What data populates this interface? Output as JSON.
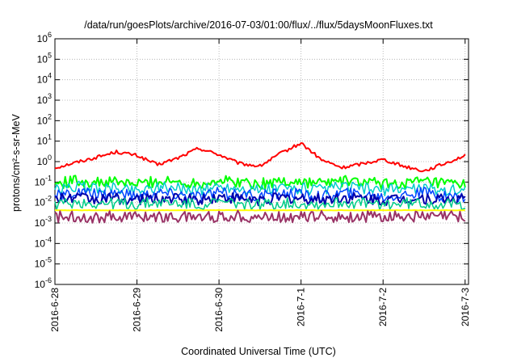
{
  "chart_data": {
    "type": "line",
    "title": "/data/run/goesPlots/archive/2016-07-03/01:00/flux/../flux/5daysMoonFluxes.txt",
    "xlabel": "Coordinated Universal Time (UTC)",
    "ylabel": "protons/cm²-s-sr-MeV",
    "yscale": "log",
    "ylim": [
      1e-06,
      1000000.0
    ],
    "xlim": [
      "2016-06-28",
      "2016-07-03 01:00"
    ],
    "grid": true,
    "x_ticks": [
      "2016-6-28",
      "2016-6-29",
      "2016-6-30",
      "2016-7-1",
      "2016-7-2",
      "2016-7-3"
    ],
    "y_ticks": [
      {
        "base": "10",
        "exp": "6"
      },
      {
        "base": "10",
        "exp": "5"
      },
      {
        "base": "10",
        "exp": "4"
      },
      {
        "base": "10",
        "exp": "3"
      },
      {
        "base": "10",
        "exp": "2"
      },
      {
        "base": "10",
        "exp": "1"
      },
      {
        "base": "10",
        "exp": "0"
      },
      {
        "base": "10",
        "exp": "-1"
      },
      {
        "base": "10",
        "exp": "-2"
      },
      {
        "base": "10",
        "exp": "-3"
      },
      {
        "base": "10",
        "exp": "-4"
      },
      {
        "base": "10",
        "exp": "-5"
      },
      {
        "base": "10",
        "exp": "-6"
      }
    ],
    "x_day": [
      0,
      0.25,
      0.5,
      0.75,
      1.0,
      1.25,
      1.5,
      1.75,
      2.0,
      2.25,
      2.5,
      2.75,
      3.0,
      3.25,
      3.5,
      3.75,
      4.0,
      4.25,
      4.5,
      4.75,
      5.0
    ],
    "series": [
      {
        "color": "#ff0000",
        "width": 2,
        "values": [
          0.5,
          0.9,
          1.6,
          3.0,
          2.0,
          0.7,
          1.5,
          4.5,
          2.2,
          0.8,
          0.6,
          2.5,
          8.0,
          1.2,
          0.5,
          0.8,
          1.3,
          0.6,
          0.35,
          0.8,
          2.0
        ]
      },
      {
        "color": "#00ff00",
        "width": 2,
        "values": [
          0.08,
          0.12,
          0.09,
          0.1,
          0.08,
          0.11,
          0.1,
          0.09,
          0.12,
          0.1,
          0.08,
          0.11,
          0.1,
          0.09,
          0.11,
          0.1,
          0.08,
          0.09,
          0.1,
          0.08,
          0.07
        ]
      },
      {
        "color": "#00cccc",
        "width": 1.5,
        "values": [
          0.04,
          0.06,
          0.05,
          0.05,
          0.04,
          0.06,
          0.05,
          0.04,
          0.06,
          0.05,
          0.04,
          0.05,
          0.05,
          0.04,
          0.06,
          0.05,
          0.04,
          0.05,
          0.05,
          0.04,
          0.04
        ]
      },
      {
        "color": "#0044ff",
        "width": 1.5,
        "values": [
          0.02,
          0.03,
          0.025,
          0.03,
          0.02,
          0.03,
          0.025,
          0.02,
          0.03,
          0.025,
          0.02,
          0.03,
          0.025,
          0.02,
          0.03,
          0.025,
          0.02,
          0.025,
          0.03,
          0.02,
          0.02
        ]
      },
      {
        "color": "#0000aa",
        "width": 2,
        "values": [
          0.015,
          0.018,
          0.014,
          0.016,
          0.013,
          0.017,
          0.015,
          0.014,
          0.018,
          0.015,
          0.013,
          0.016,
          0.015,
          0.014,
          0.017,
          0.015,
          0.013,
          0.015,
          0.016,
          0.014,
          0.015
        ]
      },
      {
        "color": "#00cc88",
        "width": 1.5,
        "values": [
          0.008,
          0.01,
          0.009,
          0.009,
          0.008,
          0.01,
          0.009,
          0.008,
          0.01,
          0.009,
          0.008,
          0.009,
          0.009,
          0.008,
          0.01,
          0.009,
          0.008,
          0.009,
          0.009,
          0.008,
          0.008
        ]
      },
      {
        "color": "#ffff00",
        "width": 2,
        "values": [
          0.0042,
          0.0042,
          0.0042,
          0.0042,
          0.0042,
          0.0042,
          0.0042,
          0.0042,
          0.0042,
          0.0042,
          0.0042,
          0.0042,
          0.0042,
          0.0042,
          0.0042,
          0.0042,
          0.0042,
          0.0042,
          0.0042,
          0.0042,
          0.0042
        ]
      },
      {
        "color": "#993366",
        "width": 2,
        "values": [
          0.002,
          0.0022,
          0.0019,
          0.0021,
          0.002,
          0.0022,
          0.0019,
          0.0021,
          0.002,
          0.0022,
          0.0019,
          0.0021,
          0.002,
          0.0022,
          0.0019,
          0.0021,
          0.002,
          0.0022,
          0.0019,
          0.0021,
          0.002
        ]
      }
    ]
  }
}
